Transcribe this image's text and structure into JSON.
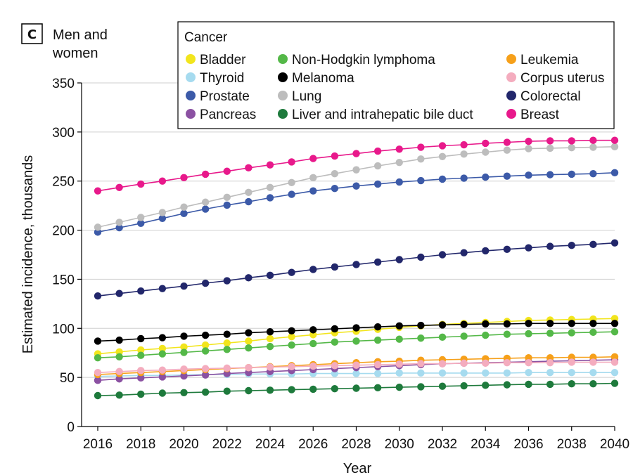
{
  "panel": {
    "letter": "C",
    "label_line1": "Men and",
    "label_line2": "women"
  },
  "chart_data": {
    "type": "line",
    "xlabel": "Year",
    "ylabel": "Estimated incidence, thousands",
    "xlim": [
      2016,
      2040
    ],
    "ylim": [
      0,
      350
    ],
    "x_ticks": [
      2016,
      2018,
      2020,
      2022,
      2024,
      2026,
      2028,
      2030,
      2032,
      2034,
      2036,
      2038,
      2040
    ],
    "y_ticks": [
      0,
      50,
      100,
      150,
      200,
      250,
      300,
      350
    ],
    "grid": "horizontal",
    "legend": {
      "title": "Cancer",
      "placement": "top-right"
    },
    "x": [
      2016,
      2017,
      2018,
      2019,
      2020,
      2021,
      2022,
      2023,
      2024,
      2025,
      2026,
      2027,
      2028,
      2029,
      2030,
      2031,
      2032,
      2033,
      2034,
      2035,
      2036,
      2037,
      2038,
      2039,
      2040
    ],
    "series": [
      {
        "name": "Bladder",
        "color": "#f2e51d",
        "values": [
          74,
          76,
          78,
          79.5,
          81,
          83,
          85,
          87,
          89.5,
          91.5,
          93.5,
          95.5,
          97,
          99,
          101,
          102.5,
          104,
          105,
          106,
          107,
          108,
          108.5,
          109,
          109.5,
          110
        ]
      },
      {
        "name": "Thyroid",
        "color": "#a6dbef",
        "values": [
          51,
          51.5,
          52,
          52,
          52.5,
          53,
          53,
          53.5,
          53.5,
          53.5,
          54,
          54,
          54,
          54,
          54.5,
          54.5,
          54.5,
          54.5,
          54.5,
          54.5,
          55,
          55,
          55,
          55,
          55
        ]
      },
      {
        "name": "Prostate",
        "color": "#3c5aa8",
        "values": [
          198,
          202.5,
          207,
          212,
          217,
          221.5,
          225.5,
          229,
          233,
          236.5,
          240,
          242.5,
          245,
          247,
          249,
          250.5,
          252,
          253,
          254,
          255,
          256,
          256.5,
          257,
          257.5,
          258.5
        ]
      },
      {
        "name": "Pancreas",
        "color": "#8b51a2",
        "values": [
          47,
          48.5,
          49.5,
          50.5,
          51.5,
          52.5,
          54,
          55,
          56,
          57,
          58,
          59,
          60,
          61,
          62,
          63,
          64,
          64.5,
          65,
          65.5,
          66,
          66.5,
          67,
          67.5,
          68
        ]
      },
      {
        "name": "Non-Hodgkin lymphoma",
        "color": "#54b848",
        "values": [
          70,
          71,
          72.5,
          74,
          75.5,
          77,
          78.5,
          80,
          81.5,
          83,
          84.5,
          86,
          87,
          88,
          89,
          90,
          91,
          92,
          93,
          94,
          94.5,
          95,
          95.5,
          96,
          96.5
        ]
      },
      {
        "name": "Melanoma",
        "color": "#000000",
        "values": [
          87,
          88,
          89.5,
          90.5,
          92,
          93,
          94,
          95.5,
          96.5,
          97.5,
          98.5,
          99.5,
          100.5,
          101.5,
          102.5,
          103,
          103.5,
          104,
          104.5,
          104.5,
          105,
          105,
          105,
          105,
          105
        ]
      },
      {
        "name": "Lung",
        "color": "#bdbdbd",
        "values": [
          203,
          208,
          213,
          218,
          223.5,
          228.5,
          233.5,
          238.5,
          243.5,
          248.5,
          253.5,
          257.5,
          261.5,
          265.5,
          269,
          272.5,
          275,
          277.5,
          279.5,
          281.5,
          283,
          283.5,
          284,
          284.5,
          285
        ]
      },
      {
        "name": "Liver and intrahepatic bile duct",
        "color": "#1e7a3c",
        "values": [
          31.5,
          32,
          33,
          34,
          34.5,
          35,
          36,
          36.5,
          37,
          37.5,
          38,
          38.5,
          39,
          39.5,
          40,
          40.5,
          41,
          41.5,
          42,
          42.5,
          43,
          43,
          43.5,
          43.5,
          44
        ]
      },
      {
        "name": "Leukemia",
        "color": "#f6a01a",
        "values": [
          53,
          54,
          55,
          56,
          57,
          58,
          59,
          60,
          61,
          62,
          63,
          64,
          65,
          66,
          66.5,
          67.5,
          68,
          68.5,
          69,
          69.5,
          70,
          70,
          70.5,
          70.5,
          71
        ]
      },
      {
        "name": "Corpus uterus",
        "color": "#f4acbe",
        "values": [
          55,
          56,
          57,
          57.5,
          58.5,
          59,
          59.5,
          60,
          60.5,
          61,
          61.5,
          62,
          62.5,
          63,
          63.5,
          64,
          64,
          64.5,
          64.5,
          65,
          65,
          65,
          65.5,
          65.5,
          65.5
        ]
      },
      {
        "name": "Colorectal",
        "color": "#22276b",
        "values": [
          133,
          135.5,
          138,
          140.5,
          143,
          146,
          148.5,
          151.5,
          154,
          157,
          160,
          162.5,
          165,
          167.5,
          170,
          172.5,
          175,
          177,
          179,
          180.5,
          182,
          183.5,
          184.5,
          185.5,
          187
        ]
      },
      {
        "name": "Breast",
        "color": "#e8198b",
        "values": [
          240,
          243.5,
          247,
          250,
          253.5,
          257,
          260,
          263.5,
          266.5,
          269.5,
          273,
          275.5,
          278,
          280.5,
          282.5,
          284.5,
          286,
          287,
          288.5,
          289.5,
          290.5,
          291,
          291,
          291.5,
          291.5
        ]
      }
    ],
    "legend_order": [
      [
        "Bladder",
        "Non-Hodgkin lymphoma",
        "Leukemia"
      ],
      [
        "Thyroid",
        "Melanoma",
        "Corpus uterus"
      ],
      [
        "Prostate",
        "Lung",
        "Colorectal"
      ],
      [
        "Pancreas",
        "Liver and intrahepatic bile duct",
        "Breast"
      ]
    ]
  }
}
